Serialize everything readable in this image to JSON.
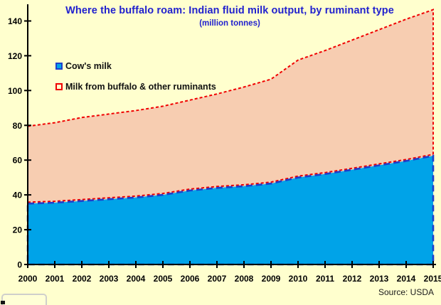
{
  "window": {
    "background_color": "#FFFFCE"
  },
  "chart_data": {
    "type": "area",
    "stacked": true,
    "title": "Where the buffalo roam: Indian fluid milk output, by ruminant type",
    "subtitle": "(million tonnes)",
    "source": "Source: USDA",
    "x": [
      2000,
      2001,
      2002,
      2003,
      2004,
      2005,
      2006,
      2007,
      2008,
      2009,
      2010,
      2011,
      2012,
      2013,
      2014,
      2015
    ],
    "series": [
      {
        "name": "Cow's milk",
        "values": [
          35,
          35.5,
          36.5,
          37.5,
          38.5,
          40,
          42.5,
          44,
          45,
          46.5,
          50,
          52,
          54.5,
          57,
          59.5,
          62.5
        ],
        "fill": "#00A3E8",
        "line_color": "#1E3FCC",
        "line_style": "dashed"
      },
      {
        "name": "Milk from buffalo & other ruminants",
        "values": [
          44.5,
          46,
          48,
          49,
          50,
          51,
          52,
          54,
          57,
          60,
          67.5,
          71,
          74.5,
          78,
          81.5,
          84
        ],
        "fill": "#F7CDB1",
        "line_color": "#F00000",
        "line_style": "dashed"
      }
    ],
    "stack_totals": [
      79.5,
      81.5,
      84.5,
      86.5,
      88.5,
      91,
      94.5,
      98,
      102,
      106.5,
      117.5,
      123,
      129,
      135,
      141,
      146.5
    ],
    "ylim": [
      0,
      150
    ],
    "y_ticks": [
      0,
      20,
      40,
      60,
      80,
      100,
      120,
      140
    ],
    "xlabel": "",
    "ylabel": "",
    "grid": false,
    "legend_position": "inside-upper-left",
    "axis_color": "#000000"
  }
}
